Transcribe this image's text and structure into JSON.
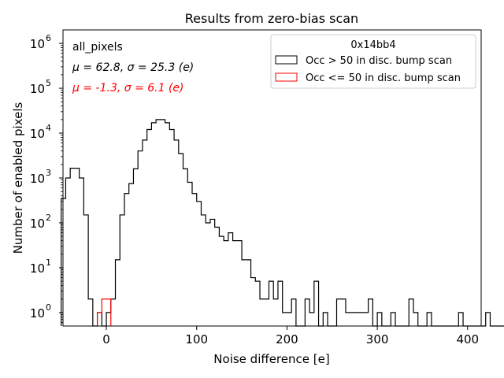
{
  "chart_data": {
    "type": "histogram",
    "title": "Results from zero-bias scan",
    "xlabel": "Noise difference [e]",
    "ylabel": "Number of enabled pixels",
    "xlim": [
      -48,
      415
    ],
    "ylim_log10": [
      -0.3,
      6.3
    ],
    "yscale": "log",
    "bin_width": 5,
    "x_ticks": [
      0,
      100,
      200,
      300,
      400
    ],
    "x_tick_labels": [
      "0",
      "100",
      "200",
      "300",
      "400"
    ],
    "y_ticks": [
      1,
      10,
      100,
      1000,
      10000,
      100000,
      1000000
    ],
    "y_tick_labels": [
      {
        "base": "10",
        "exp": "0"
      },
      {
        "base": "10",
        "exp": "1"
      },
      {
        "base": "10",
        "exp": "2"
      },
      {
        "base": "10",
        "exp": "3"
      },
      {
        "base": "10",
        "exp": "4"
      },
      {
        "base": "10",
        "exp": "5"
      },
      {
        "base": "10",
        "exp": "6"
      }
    ],
    "annotations": {
      "label": "all_pixels",
      "stats_black": "μ = 62.8, σ = 25.3 (e)",
      "stats_red": "μ = -1.3, σ = 6.1 (e)"
    },
    "legend": {
      "title": "0x14bb4",
      "position": "top-right",
      "entries": [
        "Occ > 50 in disc. bump scan",
        "Occ <= 50 in disc. bump scan"
      ]
    },
    "series": [
      {
        "name": "Occ > 50 in disc. bump scan",
        "color": "#000000",
        "bin_start": -50,
        "counts": [
          350,
          1000,
          1650,
          1650,
          1000,
          150,
          2,
          0,
          1,
          0,
          1,
          2,
          15,
          150,
          450,
          750,
          1600,
          4000,
          7000,
          12000,
          17000,
          20000,
          20000,
          17000,
          12000,
          7000,
          3500,
          1600,
          800,
          450,
          300,
          150,
          100,
          120,
          80,
          50,
          40,
          60,
          40,
          40,
          15,
          15,
          6,
          5,
          2,
          2,
          5,
          2,
          5,
          1,
          1,
          2,
          0,
          0,
          2,
          1,
          5,
          0,
          1,
          0,
          0,
          2,
          2,
          1,
          1,
          1,
          1,
          1,
          2,
          0,
          1,
          0,
          0,
          1,
          0,
          0,
          0,
          2,
          1,
          0,
          0,
          1,
          0,
          0,
          0,
          0,
          0,
          0,
          1,
          0,
          0,
          0,
          0,
          0,
          1,
          0,
          0,
          0,
          0
        ]
      },
      {
        "name": "Occ <= 50 in disc. bump scan",
        "color": "#ff0000",
        "bin_start": -10,
        "counts": [
          1,
          2,
          2
        ]
      }
    ]
  },
  "colors": {
    "black_series": "#000000",
    "red_series": "#ff0000",
    "frame": "#000000"
  }
}
